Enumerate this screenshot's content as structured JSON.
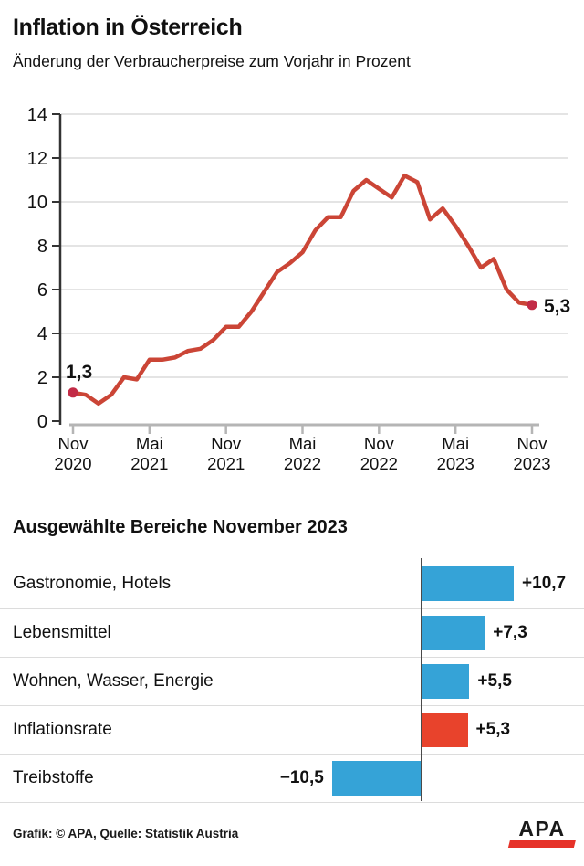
{
  "header": {
    "title": "Inflation in Österreich",
    "subtitle": "Änderung der Verbraucherpreise zum Vorjahr in Prozent"
  },
  "chart_data": [
    {
      "type": "line",
      "title": "Inflation in Österreich",
      "subtitle": "Änderung der Verbraucherpreise zum Vorjahr in Prozent",
      "ylim": [
        0,
        14
      ],
      "yticks": [
        0,
        2,
        4,
        6,
        8,
        10,
        12,
        14
      ],
      "grid": true,
      "legend": false,
      "x_tick_labels": [
        [
          "Nov",
          "2020"
        ],
        [
          "Mai",
          "2021"
        ],
        [
          "Nov",
          "2021"
        ],
        [
          "Mai",
          "2022"
        ],
        [
          "Nov",
          "2022"
        ],
        [
          "Mai",
          "2023"
        ],
        [
          "Nov",
          "2023"
        ]
      ],
      "x_tick_indices": [
        0,
        6,
        12,
        18,
        24,
        30,
        36
      ],
      "categories": [
        "Nov 2020",
        "Dez 2020",
        "Jan 2021",
        "Feb 2021",
        "Mär 2021",
        "Apr 2021",
        "Mai 2021",
        "Jun 2021",
        "Jul 2021",
        "Aug 2021",
        "Sep 2021",
        "Okt 2021",
        "Nov 2021",
        "Dez 2021",
        "Jan 2022",
        "Feb 2022",
        "Mär 2022",
        "Apr 2022",
        "Mai 2022",
        "Jun 2022",
        "Jul 2022",
        "Aug 2022",
        "Sep 2022",
        "Okt 2022",
        "Nov 2022",
        "Dez 2022",
        "Jan 2023",
        "Feb 2023",
        "Mär 2023",
        "Apr 2023",
        "Mai 2023",
        "Jun 2023",
        "Jul 2023",
        "Aug 2023",
        "Sep 2023",
        "Okt 2023",
        "Nov 2023"
      ],
      "series": [
        {
          "name": "Inflationsrate",
          "color": "#cb4536",
          "marker_color": "#c22b46",
          "values": [
            1.3,
            1.2,
            0.8,
            1.2,
            2.0,
            1.9,
            2.8,
            2.8,
            2.9,
            3.2,
            3.3,
            3.7,
            4.3,
            4.3,
            5.0,
            5.9,
            6.8,
            7.2,
            7.7,
            8.7,
            9.3,
            9.3,
            10.5,
            11.0,
            10.6,
            10.2,
            11.2,
            10.9,
            9.2,
            9.7,
            8.9,
            8.0,
            7.0,
            7.4,
            6.0,
            5.4,
            5.3
          ]
        }
      ],
      "annotations": [
        {
          "index": 0,
          "label": "1,3"
        },
        {
          "index": 36,
          "label": "5,3"
        }
      ]
    },
    {
      "type": "bar",
      "orientation": "horizontal",
      "title": "Ausgewählte Bereiche November 2023",
      "categories": [
        "Gastronomie, Hotels",
        "Lebensmittel",
        "Wohnen, Wasser, Energie",
        "Inflationsrate",
        "Treibstoffe"
      ],
      "values": [
        10.7,
        7.3,
        5.5,
        5.3,
        -10.5
      ],
      "value_labels": [
        "+10,7",
        "+7,3",
        "+5,5",
        "+5,3",
        "−10,5"
      ],
      "bar_colors": [
        "#35a3d7",
        "#35a3d7",
        "#35a3d7",
        "#e8432c",
        "#35a3d7"
      ]
    }
  ],
  "colors": {
    "line": "#cb4536",
    "marker": "#c22b46",
    "bar_blue": "#35a3d7",
    "bar_red": "#e8432c",
    "grid": "#dcdcdc",
    "x_axis": "#b5b5b5",
    "y_axis": "#333333",
    "logo_red": "#e63229"
  },
  "footer": {
    "credit": "Grafik: © APA, Quelle: Statistik Austria",
    "logo_text": "APA"
  }
}
